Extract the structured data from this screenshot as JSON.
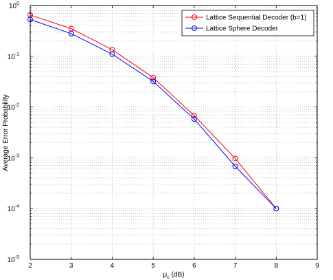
{
  "chart_data": {
    "type": "line",
    "title": "",
    "xlabel": "μc (dB)",
    "xlabel_main": "μ",
    "xlabel_sub": "c",
    "xlabel_rest": " (dB)",
    "ylabel": "Average Error Probability",
    "xlim": [
      2,
      9
    ],
    "ylim": [
      1e-05,
      1
    ],
    "yscale": "log",
    "grid": true,
    "legend_position": "top-right",
    "x_ticks": [
      2,
      3,
      4,
      5,
      6,
      7,
      8,
      9
    ],
    "x_tick_labels": [
      "2",
      "3",
      "4",
      "5",
      "6",
      "7",
      "8",
      "9"
    ],
    "y_tick_exponents": [
      0,
      -1,
      -2,
      -3,
      -4,
      -5
    ],
    "y_tick_base": "10",
    "series": [
      {
        "name": "Lattice Sequential Decoder (b=1)",
        "color": "#ff0000",
        "marker": "circle",
        "x": [
          2,
          3,
          4,
          5,
          6,
          7,
          8
        ],
        "y": [
          0.65,
          0.35,
          0.135,
          0.038,
          0.0068,
          0.00097,
          0.0001
        ]
      },
      {
        "name": "Lattice Sphere Decoder",
        "color": "#0000ff",
        "marker": "circle",
        "x": [
          2,
          3,
          4,
          5,
          6,
          7,
          8
        ],
        "y": [
          0.53,
          0.28,
          0.11,
          0.032,
          0.0058,
          0.00068,
          0.0001
        ]
      }
    ]
  }
}
